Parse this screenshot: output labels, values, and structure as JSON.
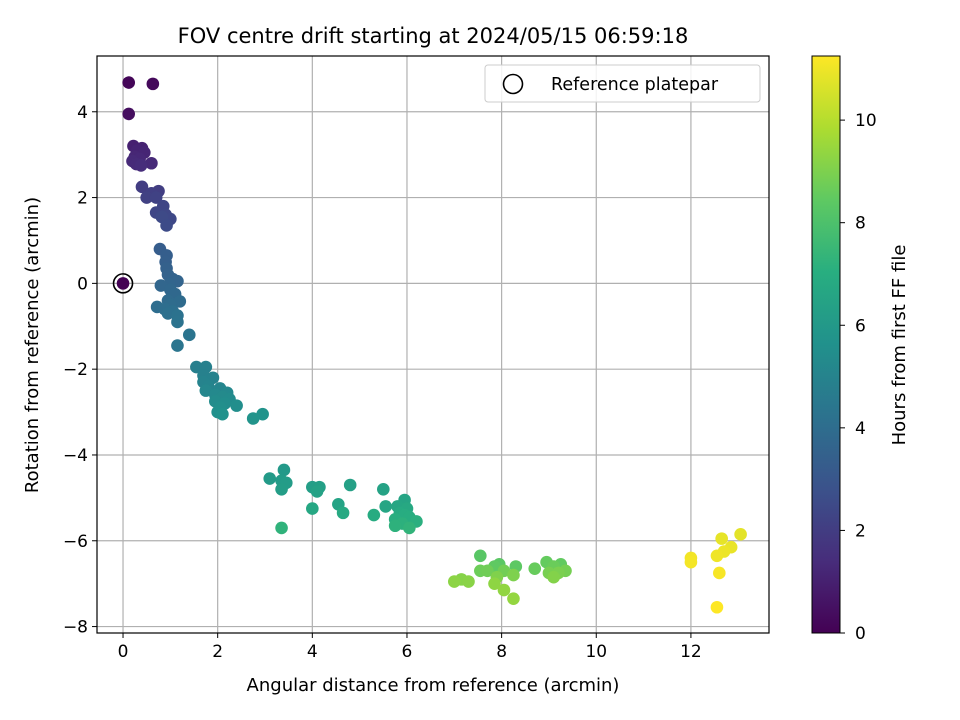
{
  "chart_data": {
    "type": "scatter",
    "title": "FOV centre drift starting at 2024/05/15 06:59:18",
    "xlabel": "Angular distance from reference (arcmin)",
    "ylabel": "Rotation from reference (arcmin)",
    "xlim": [
      -0.55,
      13.65
    ],
    "ylim": [
      -8.15,
      5.3
    ],
    "xticks": [
      0,
      2,
      4,
      6,
      8,
      10,
      12
    ],
    "yticks": [
      -8,
      -6,
      -4,
      -2,
      0,
      2,
      4
    ],
    "grid": true,
    "legend": {
      "location": "upper right",
      "entries": [
        "Reference platepar"
      ]
    },
    "reference_point": {
      "x": 0,
      "y": 0
    },
    "colorbar": {
      "label": "Hours from first FF file",
      "colormap": "viridis",
      "range": [
        0,
        11.25
      ],
      "ticks": [
        0,
        2,
        4,
        6,
        8,
        10
      ]
    },
    "points": [
      [
        0.0,
        0.0,
        0.0
      ],
      [
        0.12,
        4.68,
        0.15
      ],
      [
        0.63,
        4.65,
        0.25
      ],
      [
        0.12,
        3.95,
        0.4
      ],
      [
        0.22,
        3.2,
        1.0
      ],
      [
        0.4,
        3.15,
        1.05
      ],
      [
        0.3,
        3.1,
        1.1
      ],
      [
        0.45,
        3.05,
        1.15
      ],
      [
        0.25,
        2.95,
        1.2
      ],
      [
        0.35,
        2.9,
        1.25
      ],
      [
        0.2,
        2.85,
        1.3
      ],
      [
        0.6,
        2.8,
        1.3
      ],
      [
        0.28,
        2.78,
        1.35
      ],
      [
        0.38,
        2.75,
        1.4
      ],
      [
        0.4,
        2.25,
        2.0
      ],
      [
        0.75,
        2.15,
        2.05
      ],
      [
        0.6,
        2.1,
        2.1
      ],
      [
        0.5,
        2.0,
        2.15
      ],
      [
        0.7,
        2.0,
        2.2
      ],
      [
        0.85,
        1.8,
        2.3
      ],
      [
        0.7,
        1.65,
        2.35
      ],
      [
        0.9,
        1.6,
        2.4
      ],
      [
        1.0,
        1.5,
        2.45
      ],
      [
        0.82,
        1.55,
        2.5
      ],
      [
        0.92,
        1.35,
        2.55
      ],
      [
        0.78,
        0.8,
        3.3
      ],
      [
        0.92,
        0.65,
        3.35
      ],
      [
        0.9,
        0.5,
        3.4
      ],
      [
        0.92,
        0.35,
        3.45
      ],
      [
        0.95,
        0.2,
        3.5
      ],
      [
        1.05,
        0.1,
        3.55
      ],
      [
        1.15,
        0.05,
        3.6
      ],
      [
        0.98,
        -0.02,
        3.65
      ],
      [
        0.8,
        -0.05,
        3.7
      ],
      [
        1.0,
        -0.15,
        3.75
      ],
      [
        1.1,
        -0.25,
        3.8
      ],
      [
        0.95,
        -0.4,
        3.85
      ],
      [
        1.2,
        -0.42,
        3.9
      ],
      [
        1.0,
        -0.5,
        3.95
      ],
      [
        0.72,
        -0.55,
        4.0
      ],
      [
        0.88,
        -0.6,
        4.05
      ],
      [
        1.05,
        -0.65,
        4.1
      ],
      [
        0.95,
        -0.7,
        4.15
      ],
      [
        1.15,
        -0.75,
        4.2
      ],
      [
        1.15,
        -0.9,
        4.25
      ],
      [
        1.4,
        -1.2,
        4.3
      ],
      [
        1.15,
        -1.45,
        4.35
      ],
      [
        1.55,
        -1.95,
        4.8
      ],
      [
        1.75,
        -1.95,
        4.85
      ],
      [
        1.7,
        -2.15,
        4.9
      ],
      [
        1.9,
        -2.2,
        4.95
      ],
      [
        1.7,
        -2.3,
        5.0
      ],
      [
        1.8,
        -2.4,
        5.05
      ],
      [
        2.05,
        -2.45,
        5.1
      ],
      [
        1.75,
        -2.5,
        5.15
      ],
      [
        2.2,
        -2.55,
        5.2
      ],
      [
        1.95,
        -2.6,
        5.25
      ],
      [
        2.1,
        -2.65,
        5.3
      ],
      [
        2.25,
        -2.7,
        5.35
      ],
      [
        1.95,
        -2.75,
        5.4
      ],
      [
        2.15,
        -2.8,
        5.45
      ],
      [
        2.4,
        -2.85,
        5.5
      ],
      [
        2.05,
        -2.9,
        5.55
      ],
      [
        2.0,
        -3.0,
        5.6
      ],
      [
        2.1,
        -3.05,
        5.65
      ],
      [
        2.95,
        -3.05,
        5.7
      ],
      [
        2.75,
        -3.15,
        5.75
      ],
      [
        3.4,
        -4.35,
        6.0
      ],
      [
        3.1,
        -4.55,
        6.05
      ],
      [
        3.35,
        -4.6,
        6.1
      ],
      [
        3.45,
        -4.65,
        6.15
      ],
      [
        3.35,
        -4.8,
        6.2
      ],
      [
        4.0,
        -4.75,
        6.25
      ],
      [
        4.15,
        -4.75,
        6.3
      ],
      [
        4.8,
        -4.7,
        6.35
      ],
      [
        4.1,
        -4.85,
        6.4
      ],
      [
        5.5,
        -4.8,
        6.45
      ],
      [
        4.55,
        -5.15,
        6.5
      ],
      [
        5.95,
        -5.05,
        6.55
      ],
      [
        5.55,
        -5.2,
        6.6
      ],
      [
        5.8,
        -5.2,
        6.65
      ],
      [
        4.0,
        -5.25,
        6.7
      ],
      [
        6.0,
        -5.25,
        6.75
      ],
      [
        4.65,
        -5.35,
        6.8
      ],
      [
        5.85,
        -5.35,
        6.85
      ],
      [
        5.3,
        -5.4,
        6.9
      ],
      [
        5.95,
        -5.4,
        6.95
      ],
      [
        6.05,
        -5.45,
        7.0
      ],
      [
        5.75,
        -5.5,
        7.05
      ],
      [
        6.2,
        -5.55,
        7.1
      ],
      [
        5.9,
        -5.6,
        7.15
      ],
      [
        5.75,
        -5.65,
        7.2
      ],
      [
        3.35,
        -5.7,
        7.25
      ],
      [
        6.05,
        -5.7,
        7.3
      ],
      [
        7.55,
        -6.35,
        8.3
      ],
      [
        7.95,
        -6.55,
        8.35
      ],
      [
        8.3,
        -6.6,
        8.4
      ],
      [
        7.85,
        -6.6,
        8.45
      ],
      [
        9.25,
        -6.55,
        8.5
      ],
      [
        8.95,
        -6.5,
        8.55
      ],
      [
        8.7,
        -6.65,
        8.6
      ],
      [
        9.1,
        -6.6,
        8.65
      ],
      [
        7.55,
        -6.7,
        8.7
      ],
      [
        7.7,
        -6.7,
        8.75
      ],
      [
        8.05,
        -6.7,
        8.8
      ],
      [
        9.35,
        -6.7,
        8.85
      ],
      [
        9.0,
        -6.75,
        8.9
      ],
      [
        9.2,
        -6.75,
        8.95
      ],
      [
        8.25,
        -6.8,
        9.0
      ],
      [
        7.9,
        -6.85,
        9.05
      ],
      [
        9.1,
        -6.85,
        9.1
      ],
      [
        7.15,
        -6.9,
        9.15
      ],
      [
        7.3,
        -6.95,
        9.2
      ],
      [
        7.0,
        -6.95,
        9.25
      ],
      [
        7.85,
        -7.0,
        9.3
      ],
      [
        8.05,
        -7.15,
        9.35
      ],
      [
        8.25,
        -7.35,
        9.4
      ],
      [
        13.05,
        -5.85,
        10.8
      ],
      [
        12.65,
        -5.95,
        10.85
      ],
      [
        12.85,
        -6.15,
        10.9
      ],
      [
        12.7,
        -6.25,
        10.95
      ],
      [
        12.55,
        -6.35,
        11.0
      ],
      [
        12.0,
        -6.4,
        11.05
      ],
      [
        12.0,
        -6.5,
        11.1
      ],
      [
        12.6,
        -6.75,
        11.15
      ],
      [
        12.55,
        -7.55,
        11.25
      ]
    ]
  }
}
